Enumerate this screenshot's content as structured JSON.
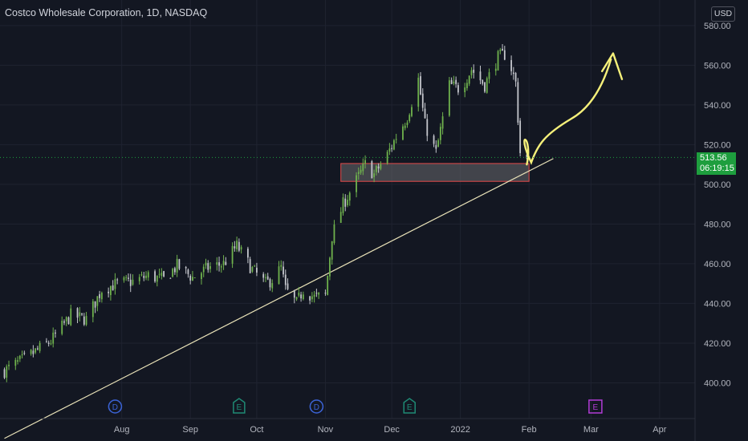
{
  "header": {
    "title": "Costco Wholesale Corporation, 1D, NASDAQ",
    "currency": "USD"
  },
  "last_price": {
    "value": "513.56",
    "countdown": "06:19:15"
  },
  "colors": {
    "background": "#131722",
    "grid": "#1f2330",
    "candle_up": "#6fb24d",
    "candle_down": "#c4c6cc",
    "trendline": "#e9e2b8",
    "drawing": "#f5f07a",
    "zone_border": "#e34a4a",
    "zone_fill": "#6a6a6e",
    "event_dividend": "#3b63d6",
    "event_earnings": "#1f8a74",
    "event_future_earnings": "#b23bd6",
    "price_tag": "#1e9e3e"
  },
  "events": [
    {
      "type": "dividend",
      "label": "D",
      "date": "2021-07-29"
    },
    {
      "type": "earnings",
      "label": "E",
      "date": "2021-09-23"
    },
    {
      "type": "dividend",
      "label": "D",
      "date": "2021-10-28"
    },
    {
      "type": "earnings",
      "label": "E",
      "date": "2021-12-09"
    },
    {
      "type": "future_earnings",
      "label": "E",
      "date": "2022-03-03"
    }
  ],
  "chart_data": {
    "type": "candlestick",
    "title": "Costco Wholesale Corporation, 1D, NASDAQ",
    "y_ticks": [
      "400.00",
      "420.00",
      "440.00",
      "460.00",
      "480.00",
      "500.00",
      "520.00",
      "540.00",
      "560.00",
      "580.00"
    ],
    "x_ticks": [
      {
        "label": "Aug",
        "date": "2021-08-01"
      },
      {
        "label": "Sep",
        "date": "2021-09-01"
      },
      {
        "label": "Oct",
        "date": "2021-10-01"
      },
      {
        "label": "Nov",
        "date": "2021-11-01"
      },
      {
        "label": "Dec",
        "date": "2021-12-01"
      },
      {
        "label": "2022",
        "date": "2022-01-01"
      },
      {
        "label": "Feb",
        "date": "2022-02-01"
      },
      {
        "label": "Mar",
        "date": "2022-03-01"
      },
      {
        "label": "Apr",
        "date": "2022-04-01"
      }
    ],
    "x_range": [
      "2021-06-07",
      "2022-04-17"
    ],
    "y_range": [
      382,
      584
    ],
    "path": [
      [
        "2021-06-09",
        406
      ],
      [
        "2021-06-18",
        412
      ],
      [
        "2021-06-30",
        421
      ],
      [
        "2021-07-09",
        434
      ],
      [
        "2021-07-16",
        432
      ],
      [
        "2021-07-23",
        447
      ],
      [
        "2021-07-30",
        450
      ],
      [
        "2021-08-06",
        451
      ],
      [
        "2021-08-13",
        454
      ],
      [
        "2021-08-20",
        452
      ],
      [
        "2021-08-26",
        459
      ],
      [
        "2021-09-02",
        453
      ],
      [
        "2021-09-09",
        458
      ],
      [
        "2021-09-16",
        460
      ],
      [
        "2021-09-22",
        469
      ],
      [
        "2021-09-29",
        457
      ],
      [
        "2021-10-05",
        450
      ],
      [
        "2021-10-08",
        452
      ],
      [
        "2021-10-12",
        458
      ],
      [
        "2021-10-14",
        447
      ],
      [
        "2021-10-19",
        440
      ],
      [
        "2021-10-22",
        447
      ],
      [
        "2021-10-27",
        443
      ],
      [
        "2021-11-01",
        444
      ],
      [
        "2021-11-04",
        474
      ],
      [
        "2021-11-09",
        490
      ],
      [
        "2021-11-15",
        502
      ],
      [
        "2021-11-19",
        510
      ],
      [
        "2021-11-23",
        505
      ],
      [
        "2021-11-29",
        515
      ],
      [
        "2021-12-03",
        524
      ],
      [
        "2021-12-08",
        534
      ],
      [
        "2021-12-13",
        553
      ],
      [
        "2021-12-16",
        530
      ],
      [
        "2021-12-21",
        516
      ],
      [
        "2021-12-27",
        550
      ],
      [
        "2022-01-01",
        548
      ],
      [
        "2022-01-06",
        558
      ],
      [
        "2022-01-12",
        550
      ],
      [
        "2022-01-18",
        564
      ],
      [
        "2022-01-22",
        566
      ],
      [
        "2022-01-26",
        551
      ],
      [
        "2022-01-28",
        516
      ],
      [
        "2022-01-31",
        512
      ]
    ],
    "support_zone": {
      "x_from": "2021-11-08",
      "x_to": "2022-02-01",
      "y_from": 501.5,
      "y_to": 510.5
    },
    "trendline": {
      "from": [
        "2021-06-09",
        372
      ],
      "to": [
        "2022-02-12",
        513
      ]
    },
    "last_price": 513.56,
    "countdown": "06:19:15"
  }
}
